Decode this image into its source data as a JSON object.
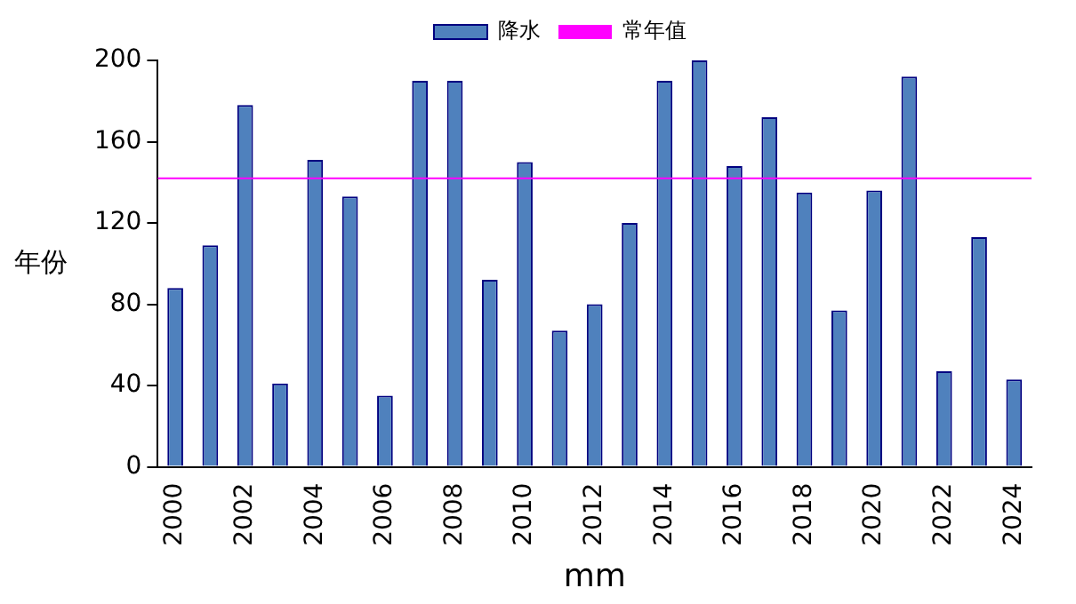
{
  "chart_data": {
    "type": "bar",
    "categories": [
      "2000",
      null,
      "2002",
      null,
      "2004",
      null,
      "2006",
      null,
      "2008",
      null,
      "2010",
      null,
      "2012",
      null,
      "2014",
      null,
      "2016",
      null,
      "2018",
      null,
      "2020",
      null,
      "2022",
      null,
      "2024"
    ],
    "series": [
      {
        "name": "降水",
        "color": "#4f81bd",
        "values": [
          88,
          109,
          178,
          41,
          151,
          133,
          35,
          190,
          190,
          92,
          150,
          67,
          80,
          120,
          190,
          200,
          148,
          172,
          135,
          77,
          136,
          192,
          47,
          113,
          43
        ]
      }
    ],
    "ref_lines": [
      {
        "axis": "y",
        "value": 142,
        "label": "常年值",
        "color": "#ff00ff"
      }
    ],
    "ylabel": "年份",
    "xlabel": "mm",
    "ylim": [
      0,
      200
    ],
    "yticks": [
      0,
      40,
      80,
      120,
      160,
      200
    ],
    "grid": false,
    "legend": "top"
  }
}
